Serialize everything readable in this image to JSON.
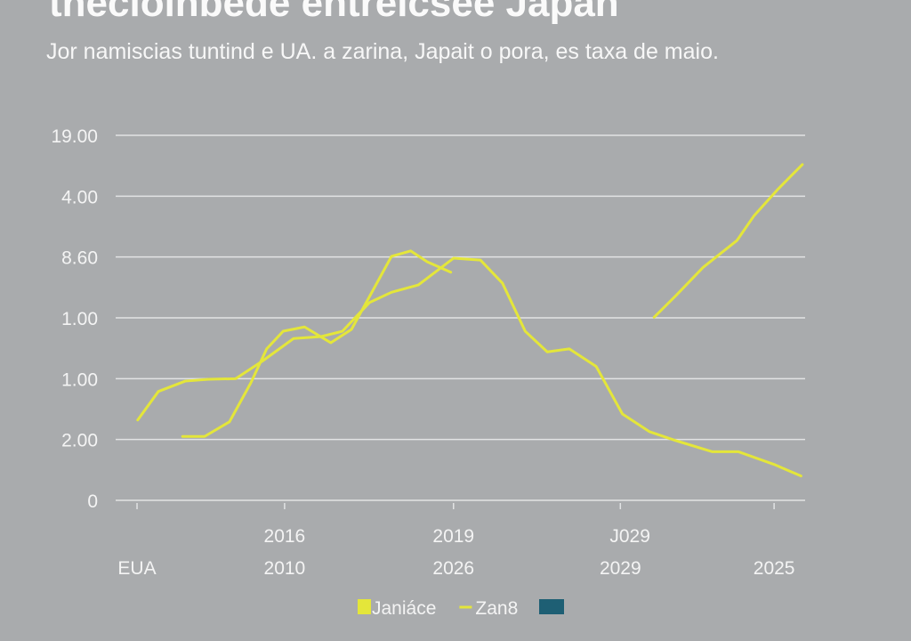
{
  "chart_data": {
    "type": "line",
    "title": "thecioinbede entreicsee Japan",
    "subtitle": "Jor namiscias tuntind e UA. a zarina, Japait o pora, es taxa de maio.",
    "xlim": [
      0,
      100
    ],
    "xticks": [
      {
        "value": 3.1,
        "label": "EUA"
      },
      {
        "value": 24.5,
        "label": "2010"
      },
      {
        "value": 49,
        "label": "2026"
      },
      {
        "value": 73.2,
        "label": "2029"
      },
      {
        "value": 95.5,
        "label": "2025"
      }
    ],
    "xticks_upper": [
      {
        "value": 24.5,
        "label": "2016"
      },
      {
        "value": 49,
        "label": "2019"
      },
      {
        "value": 74.6,
        "label": "J029"
      }
    ],
    "ylim": [
      0,
      6
    ],
    "yticks": [
      0,
      {
        "value": 1,
        "label": "2.00"
      },
      {
        "value": 2,
        "label": "1.00"
      },
      {
        "value": 3,
        "label": "1.00"
      },
      {
        "value": 4,
        "label": "8.60"
      },
      {
        "value": 5,
        "label": "4.00"
      },
      {
        "value": 6,
        "label": "19.00"
      }
    ],
    "grid": true,
    "series": [
      {
        "name": "Janiáce",
        "color": "#e4e63a",
        "legend_marker": "square",
        "x": [
          3.2,
          6.2,
          10.1,
          13.5,
          17.4,
          21.3,
          25.8,
          29.7,
          32.9,
          36.8,
          40.0,
          43.9,
          49.0,
          52.9,
          56.1,
          59.4,
          62.6,
          65.8,
          69.7,
          73.5,
          77.4,
          81.3,
          86.5,
          90.3,
          95.5,
          99.4
        ],
        "values": [
          1.32,
          1.79,
          1.96,
          1.99,
          2.0,
          2.29,
          2.66,
          2.69,
          2.78,
          3.25,
          3.42,
          3.54,
          3.98,
          3.95,
          3.57,
          2.78,
          2.44,
          2.49,
          2.2,
          1.42,
          1.13,
          0.98,
          0.8,
          0.8,
          0.59,
          0.4
        ]
      },
      {
        "name": "Zan8",
        "color": "#e4e63a",
        "legend_marker": "line",
        "x": [
          9.7,
          12.9,
          16.5,
          19.6,
          21.9,
          24.3,
          27.4,
          31.2,
          34.2,
          37.4,
          40.0,
          42.8,
          45.2,
          48.6
        ],
        "values": [
          1.05,
          1.05,
          1.29,
          1.93,
          2.49,
          2.78,
          2.85,
          2.59,
          2.81,
          3.47,
          4.01,
          4.1,
          3.92,
          3.75
        ]
      },
      {
        "color": "#e4e63a",
        "x": [
          78.1,
          81.3,
          85.2,
          90.1,
          92.6,
          96.1,
          99.6
        ],
        "values": [
          3.01,
          3.37,
          3.83,
          4.27,
          4.68,
          5.12,
          5.52
        ]
      }
    ]
  }
}
